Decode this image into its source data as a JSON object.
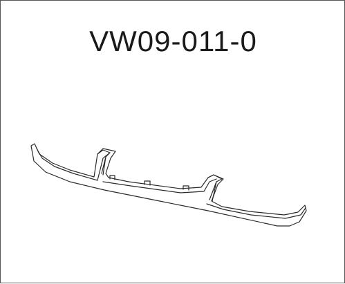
{
  "part_number": "VW09-011-0",
  "colors": {
    "stroke": "#2a2a2a",
    "frame": "#555555",
    "background": "#ffffff"
  }
}
